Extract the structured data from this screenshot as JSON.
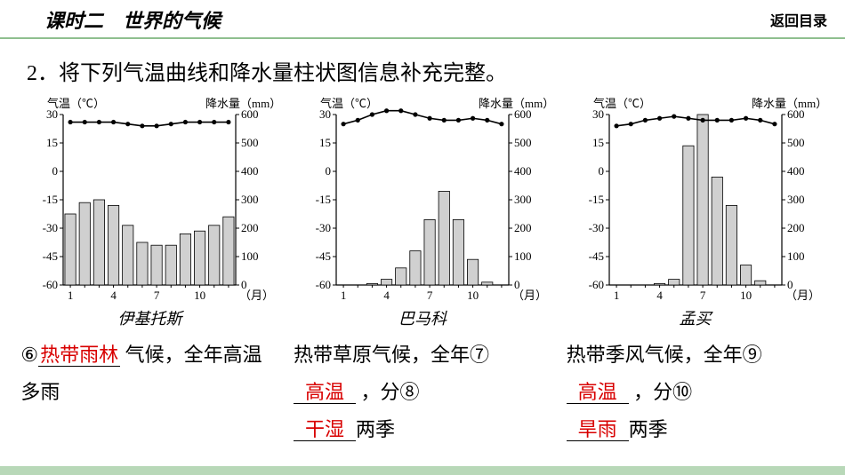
{
  "header": {
    "title": "课时二　世界的气候",
    "return_label": "返回目录",
    "underline_color": "#8fbf8f"
  },
  "question": {
    "number": "2．",
    "text": "将下列气温曲线和降水量柱状图信息补充完整。"
  },
  "axis_labels": {
    "temp": "气温（℃）",
    "precip": "降水量（mm）",
    "month": "（月）"
  },
  "y_left": {
    "min": -60,
    "max": 30,
    "step": 15,
    "ticks": [
      30,
      15,
      0,
      -15,
      -30,
      -45,
      -60
    ]
  },
  "y_right": {
    "min": 0,
    "max": 600,
    "step": 100,
    "ticks": [
      600,
      500,
      400,
      300,
      200,
      100,
      0
    ]
  },
  "x_ticks": [
    1,
    4,
    7,
    10
  ],
  "charts": [
    {
      "name": "伊基托斯",
      "temp_values": [
        26,
        26,
        26,
        26,
        25,
        24,
        24,
        25,
        26,
        26,
        26,
        26
      ],
      "precip_mm": [
        250,
        290,
        300,
        280,
        210,
        150,
        140,
        140,
        180,
        190,
        210,
        240
      ],
      "answer_parts": {
        "prefix": "⑥",
        "blank6": "热带雨林",
        "after6": " 气候，全年高温多雨"
      }
    },
    {
      "name": "巴马科",
      "temp_values": [
        25,
        27,
        30,
        32,
        32,
        30,
        28,
        27,
        27,
        28,
        27,
        25
      ],
      "precip_mm": [
        0,
        0,
        5,
        20,
        60,
        120,
        230,
        330,
        230,
        90,
        10,
        0
      ],
      "answer_parts": {
        "prefix": "热带草原气候，全年⑦ ",
        "blank7": "高温",
        "mid": " ，分⑧",
        "blank8": "干湿",
        "suffix": "两季"
      }
    },
    {
      "name": "孟买",
      "temp_values": [
        24,
        25,
        27,
        28,
        29,
        28,
        27,
        27,
        27,
        28,
        27,
        25
      ],
      "precip_mm": [
        0,
        0,
        0,
        5,
        20,
        490,
        620,
        380,
        280,
        70,
        15,
        0
      ],
      "answer_parts": {
        "prefix": "热带季风气候，全年⑨ ",
        "blank9": "高温",
        "mid": " ，分⑩",
        "blank10": "旱雨",
        "suffix": "两季"
      }
    }
  ],
  "style": {
    "bar_fill": "#d0d0d0",
    "bar_stroke": "#000000",
    "line_color": "#000000",
    "axis_color": "#000000",
    "text_color": "#000000",
    "answer_color": "#d80000",
    "footer_bar_color": "#b8d8b8",
    "font_axis_px": 13
  }
}
